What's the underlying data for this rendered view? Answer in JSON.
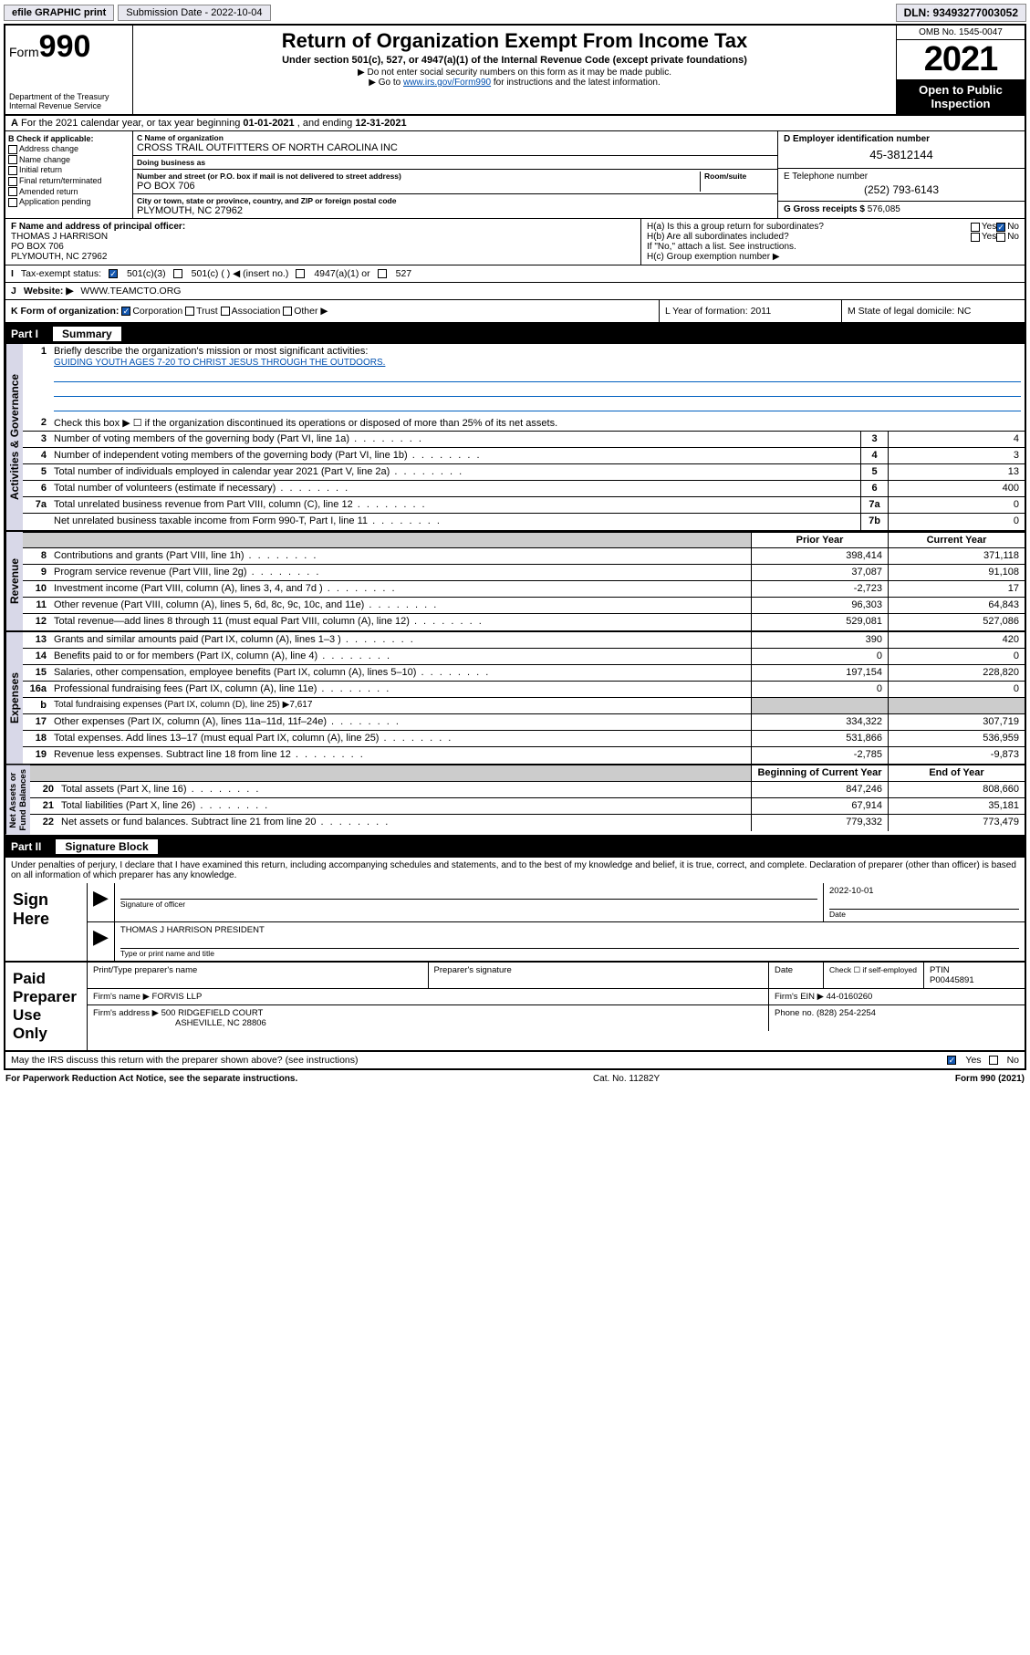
{
  "topbar": {
    "efile": "efile GRAPHIC print",
    "subdate_lbl": "Submission Date - 2022-10-04",
    "dln": "DLN: 93493277003052"
  },
  "header": {
    "form": "Form",
    "num": "990",
    "title": "Return of Organization Exempt From Income Tax",
    "sub1": "Under section 501(c), 527, or 4947(a)(1) of the Internal Revenue Code (except private foundations)",
    "sub2": "▶ Do not enter social security numbers on this form as it may be made public.",
    "sub3_pre": "▶ Go to ",
    "sub3_link": "www.irs.gov/Form990",
    "sub3_post": " for instructions and the latest information.",
    "dept": "Department of the Treasury\nInternal Revenue Service",
    "omb": "OMB No. 1545-0047",
    "year": "2021",
    "open": "Open to Public Inspection"
  },
  "a": {
    "text_pre": "For the 2021 calendar year, or tax year beginning ",
    "begin": "01-01-2021",
    "mid": " , and ending ",
    "end": "12-31-2021"
  },
  "b": {
    "hdr": "B Check if applicable:",
    "items": [
      "Address change",
      "Name change",
      "Initial return",
      "Final return/terminated",
      "Amended return",
      "Application pending"
    ]
  },
  "c": {
    "name_lbl": "C Name of organization",
    "name": "CROSS TRAIL OUTFITTERS OF NORTH CAROLINA INC",
    "dba_lbl": "Doing business as",
    "dba": "",
    "addr_lbl": "Number and street (or P.O. box if mail is not delivered to street address)",
    "room_lbl": "Room/suite",
    "addr": "PO BOX 706",
    "city_lbl": "City or town, state or province, country, and ZIP or foreign postal code",
    "city": "PLYMOUTH, NC  27962"
  },
  "d": {
    "lbl": "D Employer identification number",
    "val": "45-3812144"
  },
  "e": {
    "lbl": "E Telephone number",
    "val": "(252) 793-6143"
  },
  "g": {
    "lbl": "G Gross receipts $",
    "val": "576,085"
  },
  "f": {
    "lbl": "F Name and address of principal officer:",
    "name": "THOMAS J HARRISON",
    "addr1": "PO BOX 706",
    "addr2": "PLYMOUTH, NC  27962"
  },
  "h": {
    "a": "H(a)  Is this a group return for subordinates?",
    "b": "H(b)  Are all subordinates included?",
    "note": "If \"No,\" attach a list. See instructions.",
    "c": "H(c)  Group exemption number ▶",
    "yes": "Yes",
    "no": "No"
  },
  "i": {
    "lbl": "Tax-exempt status:",
    "o1": "501(c)(3)",
    "o2": "501(c) (  ) ◀ (insert no.)",
    "o3": "4947(a)(1) or",
    "o4": "527"
  },
  "j": {
    "lbl": "Website: ▶",
    "val": "WWW.TEAMCTO.ORG"
  },
  "k": {
    "lbl": "K Form of organization:",
    "o1": "Corporation",
    "o2": "Trust",
    "o3": "Association",
    "o4": "Other ▶",
    "l": "L Year of formation: 2011",
    "m": "M State of legal domicile: NC"
  },
  "part1": {
    "hdr": "Part I",
    "lbl": "Summary"
  },
  "summary": {
    "1_lbl": "Briefly describe the organization's mission or most significant activities:",
    "1_val": "GUIDING YOUTH AGES 7-20 TO CHRIST JESUS THROUGH THE OUTDOORS.",
    "2": "Check this box ▶ ☐  if the organization discontinued its operations or disposed of more than 25% of its net assets.",
    "lines_ag": [
      {
        "n": "3",
        "t": "Number of voting members of the governing body (Part VI, line 1a)",
        "b": "3",
        "v": "4"
      },
      {
        "n": "4",
        "t": "Number of independent voting members of the governing body (Part VI, line 1b)",
        "b": "4",
        "v": "3"
      },
      {
        "n": "5",
        "t": "Total number of individuals employed in calendar year 2021 (Part V, line 2a)",
        "b": "5",
        "v": "13"
      },
      {
        "n": "6",
        "t": "Total number of volunteers (estimate if necessary)",
        "b": "6",
        "v": "400"
      },
      {
        "n": "7a",
        "t": "Total unrelated business revenue from Part VIII, column (C), line 12",
        "b": "7a",
        "v": "0"
      },
      {
        "n": "",
        "t": "Net unrelated business taxable income from Form 990-T, Part I, line 11",
        "b": "7b",
        "v": "0"
      }
    ],
    "col_prior": "Prior Year",
    "col_current": "Current Year",
    "rev": [
      {
        "n": "8",
        "t": "Contributions and grants (Part VIII, line 1h)",
        "p": "398,414",
        "c": "371,118"
      },
      {
        "n": "9",
        "t": "Program service revenue (Part VIII, line 2g)",
        "p": "37,087",
        "c": "91,108"
      },
      {
        "n": "10",
        "t": "Investment income (Part VIII, column (A), lines 3, 4, and 7d )",
        "p": "-2,723",
        "c": "17"
      },
      {
        "n": "11",
        "t": "Other revenue (Part VIII, column (A), lines 5, 6d, 8c, 9c, 10c, and 11e)",
        "p": "96,303",
        "c": "64,843"
      },
      {
        "n": "12",
        "t": "Total revenue—add lines 8 through 11 (must equal Part VIII, column (A), line 12)",
        "p": "529,081",
        "c": "527,086"
      }
    ],
    "exp": [
      {
        "n": "13",
        "t": "Grants and similar amounts paid (Part IX, column (A), lines 1–3 )",
        "p": "390",
        "c": "420"
      },
      {
        "n": "14",
        "t": "Benefits paid to or for members (Part IX, column (A), line 4)",
        "p": "0",
        "c": "0"
      },
      {
        "n": "15",
        "t": "Salaries, other compensation, employee benefits (Part IX, column (A), lines 5–10)",
        "p": "197,154",
        "c": "228,820"
      },
      {
        "n": "16a",
        "t": "Professional fundraising fees (Part IX, column (A), line 11e)",
        "p": "0",
        "c": "0"
      }
    ],
    "exp_b": {
      "n": "b",
      "t": "Total fundraising expenses (Part IX, column (D), line 25) ▶7,617"
    },
    "exp2": [
      {
        "n": "17",
        "t": "Other expenses (Part IX, column (A), lines 11a–11d, 11f–24e)",
        "p": "334,322",
        "c": "307,719"
      },
      {
        "n": "18",
        "t": "Total expenses. Add lines 13–17 (must equal Part IX, column (A), line 25)",
        "p": "531,866",
        "c": "536,959"
      },
      {
        "n": "19",
        "t": "Revenue less expenses. Subtract line 18 from line 12",
        "p": "-2,785",
        "c": "-9,873"
      }
    ],
    "col_begin": "Beginning of Current Year",
    "col_end": "End of Year",
    "na": [
      {
        "n": "20",
        "t": "Total assets (Part X, line 16)",
        "p": "847,246",
        "c": "808,660"
      },
      {
        "n": "21",
        "t": "Total liabilities (Part X, line 26)",
        "p": "67,914",
        "c": "35,181"
      },
      {
        "n": "22",
        "t": "Net assets or fund balances. Subtract line 21 from line 20",
        "p": "779,332",
        "c": "773,479"
      }
    ],
    "vtabs": {
      "ag": "Activities & Governance",
      "rev": "Revenue",
      "exp": "Expenses",
      "na": "Net Assets or\nFund Balances"
    }
  },
  "part2": {
    "hdr": "Part II",
    "lbl": "Signature Block"
  },
  "penalties": "Under penalties of perjury, I declare that I have examined this return, including accompanying schedules and statements, and to the best of my knowledge and belief, it is true, correct, and complete. Declaration of preparer (other than officer) is based on all information of which preparer has any knowledge.",
  "sign": {
    "here": "Sign Here",
    "sig_lbl": "Signature of officer",
    "date_lbl": "Date",
    "date_val": "2022-10-01",
    "name": "THOMAS J HARRISON PRESIDENT",
    "name_lbl": "Type or print name and title"
  },
  "paid": {
    "lbl": "Paid Preparer Use Only",
    "h1": "Print/Type preparer's name",
    "h2": "Preparer's signature",
    "h3": "Date",
    "h4_pre": "Check ☐ if self-employed",
    "ptin_lbl": "PTIN",
    "ptin": "P00445891",
    "firm_lbl": "Firm's name  ▶",
    "firm": "FORVIS LLP",
    "ein_lbl": "Firm's EIN ▶",
    "ein": "44-0160260",
    "addr_lbl": "Firm's address ▶",
    "addr1": "500 RIDGEFIELD COURT",
    "addr2": "ASHEVILLE, NC  28806",
    "phone_lbl": "Phone no.",
    "phone": "(828) 254-2254"
  },
  "discuss": {
    "q": "May the IRS discuss this return with the preparer shown above? (see instructions)",
    "yes": "Yes",
    "no": "No"
  },
  "footer": {
    "left": "For Paperwork Reduction Act Notice, see the separate instructions.",
    "mid": "Cat. No. 11282Y",
    "right": "Form 990 (2021)"
  }
}
